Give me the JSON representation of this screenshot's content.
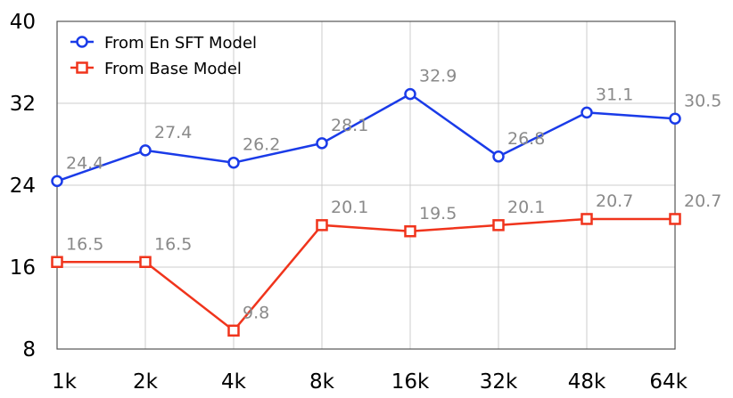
{
  "chart_data": {
    "type": "line",
    "categories": [
      "1k",
      "2k",
      "4k",
      "8k",
      "16k",
      "32k",
      "48k",
      "64k"
    ],
    "ylim": [
      8,
      40
    ],
    "yticks": [
      8,
      16,
      24,
      32,
      40
    ],
    "ytick_labels": [
      "8",
      "16",
      "24",
      "32",
      "40"
    ],
    "grid": true,
    "legend_position": "top-left",
    "series": [
      {
        "name": "From En SFT Model",
        "color": "#1a3be8",
        "marker": "circle",
        "values": [
          24.4,
          27.4,
          26.2,
          28.1,
          32.9,
          26.8,
          31.1,
          30.5
        ],
        "labels": [
          "24.4",
          "27.4",
          "26.2",
          "28.1",
          "32.9",
          "26.8",
          "31.1",
          "30.5"
        ]
      },
      {
        "name": "From Base Model",
        "color": "#f0341c",
        "marker": "square",
        "values": [
          16.5,
          16.5,
          9.8,
          20.1,
          19.5,
          20.1,
          20.7,
          20.7
        ],
        "labels": [
          "16.5",
          "16.5",
          "9.8",
          "20.1",
          "19.5",
          "20.1",
          "20.7",
          "20.7"
        ]
      }
    ]
  }
}
